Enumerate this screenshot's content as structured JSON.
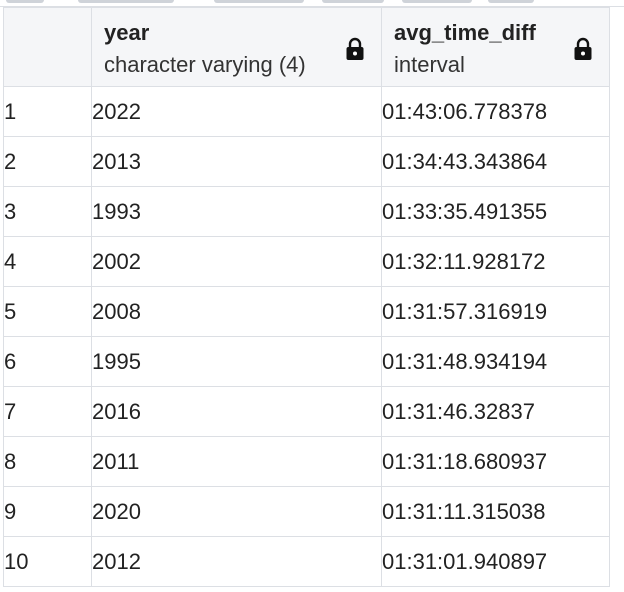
{
  "columns": [
    {
      "name": "year",
      "type": "character varying (4)"
    },
    {
      "name": "avg_time_diff",
      "type": "interval"
    }
  ],
  "rows": [
    {
      "num": "1",
      "year": "2022",
      "avg": "01:43:06.778378"
    },
    {
      "num": "2",
      "year": "2013",
      "avg": "01:34:43.343864"
    },
    {
      "num": "3",
      "year": "1993",
      "avg": "01:33:35.491355"
    },
    {
      "num": "4",
      "year": "2002",
      "avg": "01:32:11.928172"
    },
    {
      "num": "5",
      "year": "2008",
      "avg": "01:31:57.316919"
    },
    {
      "num": "6",
      "year": "1995",
      "avg": "01:31:48.934194"
    },
    {
      "num": "7",
      "year": "2016",
      "avg": "01:31:46.32837"
    },
    {
      "num": "8",
      "year": "2011",
      "avg": "01:31:18.680937"
    },
    {
      "num": "9",
      "year": "2020",
      "avg": "01:31:11.315038"
    },
    {
      "num": "10",
      "year": "2012",
      "avg": "01:31:01.940897"
    }
  ],
  "icons": {
    "column_lock": "lock-icon"
  },
  "colors": {
    "border": "#dcdfe4",
    "header_bg": "#f5f6f8",
    "text": "#222222"
  }
}
